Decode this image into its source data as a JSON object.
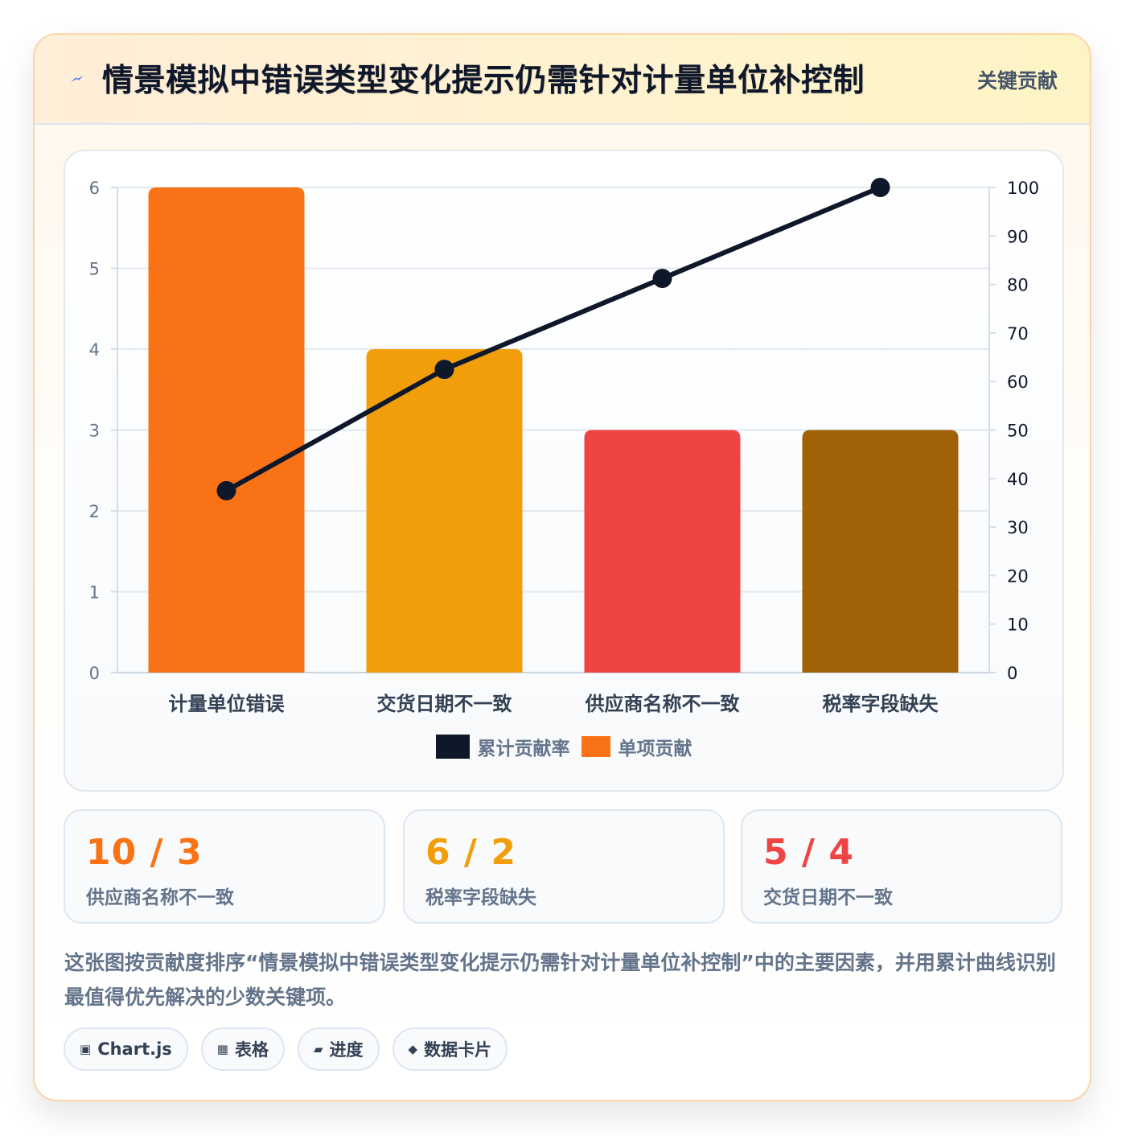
{
  "header": {
    "title": "情景模拟中错误类型变化提示仍需针对计量单位补控制",
    "tag": "关键贡献",
    "icon": "lightning-icon"
  },
  "chart_data": {
    "type": "bar",
    "categories": [
      "计量单位错误",
      "交货日期不一致",
      "供应商名称不一致",
      "税率字段缺失"
    ],
    "series": [
      {
        "name": "单项贡献",
        "type": "bar",
        "axis": "left",
        "values": [
          6,
          4,
          3,
          3
        ],
        "colors": [
          "#f97316",
          "#f29e0b",
          "#ef4444",
          "#a16207"
        ]
      },
      {
        "name": "累计贡献率",
        "type": "line",
        "axis": "right",
        "values": [
          37.5,
          62.5,
          81.25,
          100
        ],
        "color": "#0f172a"
      }
    ],
    "y_left": {
      "min": 0,
      "max": 6,
      "ticks": [
        0,
        1,
        2,
        3,
        4,
        5,
        6
      ]
    },
    "y_right": {
      "min": 0,
      "max": 100,
      "ticks": [
        0,
        10,
        20,
        30,
        40,
        50,
        60,
        70,
        80,
        90,
        100
      ]
    },
    "grid": true,
    "legend_position": "bottom"
  },
  "stats": [
    {
      "value": "10 / 3",
      "label": "供应商名称不一致",
      "color": "#f97316"
    },
    {
      "value": "6 / 2",
      "label": "税率字段缺失",
      "color": "#f29e0b"
    },
    {
      "value": "5 / 4",
      "label": "交货日期不一致",
      "color": "#ef4444"
    }
  ],
  "description": "这张图按贡献度排序“情景模拟中错误类型变化提示仍需针对计量单位补控制”中的主要因素，并用累计曲线识别最值得优先解决的少数关键项。",
  "chips": [
    {
      "icon": "▣",
      "icon_name": "chart-icon",
      "label": "Chart.js"
    },
    {
      "icon": "▦",
      "icon_name": "table-icon",
      "label": "表格"
    },
    {
      "icon": "▰",
      "icon_name": "progress-icon",
      "label": "进度"
    },
    {
      "icon": "◆",
      "icon_name": "card-icon",
      "label": "数据卡片"
    }
  ]
}
